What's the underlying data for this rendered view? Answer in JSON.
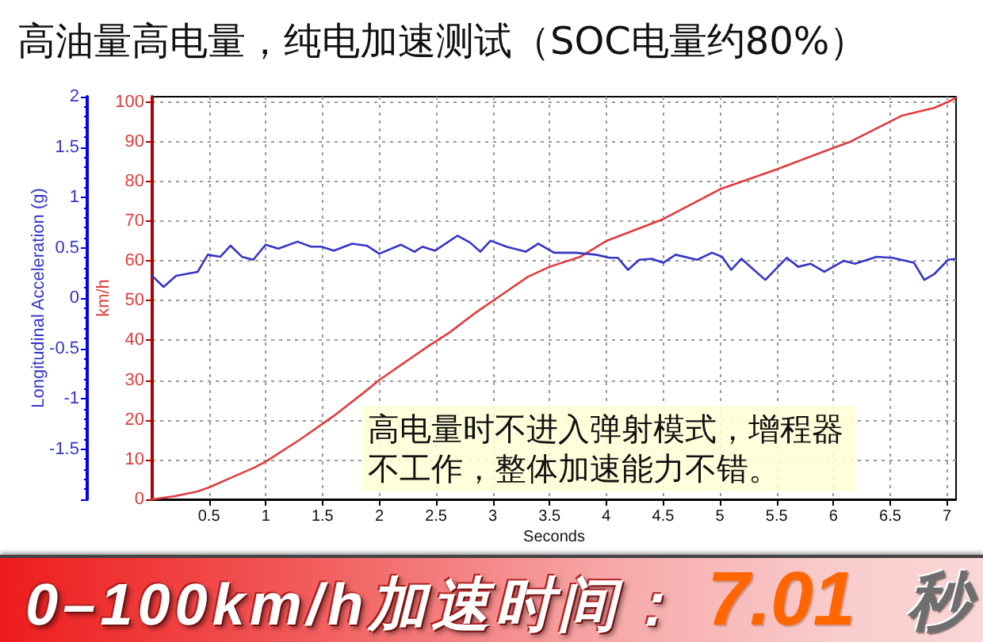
{
  "chart_data": {
    "type": "line",
    "title": "高油量高电量，纯电加速测试（SOC电量约80%）",
    "xlabel": "Seconds",
    "ylabel": "km/h",
    "y2label": "Longitudinal Acceleration (g)",
    "annotations": [
      "高电量时不进入弹射模式，增程器不工作，整体加速能力不错。",
      "0–100km/h加速时间：",
      "7.01",
      "秒"
    ],
    "series": [
      {
        "color": "#e03c3c",
        "x": [
          0,
          0.2,
          0.4,
          0.5,
          0.7,
          0.9,
          1.0,
          1.3,
          1.6,
          1.87,
          2.0,
          2.15,
          2.43,
          2.62,
          2.85,
          3.08,
          3.31,
          3.5,
          3.77,
          4.0,
          4.5,
          5.0,
          5.5,
          5.96,
          6.15,
          6.6,
          6.89,
          7.01,
          7.08
        ],
        "values": [
          0,
          0.8,
          2,
          3,
          5.5,
          8,
          9.5,
          15,
          21,
          27,
          30,
          33,
          38.5,
          42,
          47,
          51.5,
          56,
          58.5,
          61,
          65,
          70.5,
          78,
          83,
          88,
          90,
          96.5,
          98.5,
          100,
          101
        ]
      },
      {
        "color": "#3535c8",
        "axis": "y2",
        "x": [
          0,
          0.1,
          0.21,
          0.4,
          0.49,
          0.6,
          0.69,
          0.79,
          0.89,
          1.0,
          1.11,
          1.28,
          1.4,
          1.49,
          1.6,
          1.76,
          1.89,
          2.0,
          2.19,
          2.31,
          2.38,
          2.49,
          2.69,
          2.8,
          2.89,
          2.98,
          3.12,
          3.29,
          3.4,
          3.54,
          3.73,
          3.91,
          4.03,
          4.1,
          4.19,
          4.29,
          4.4,
          4.5,
          4.61,
          4.8,
          4.93,
          5.02,
          5.1,
          5.19,
          5.29,
          5.4,
          5.59,
          5.69,
          5.8,
          5.92,
          6.09,
          6.19,
          6.38,
          6.52,
          6.71,
          6.8,
          6.89,
          7.01,
          7.08
        ],
        "values": [
          0.22,
          0.11,
          0.22,
          0.26,
          0.43,
          0.41,
          0.52,
          0.41,
          0.38,
          0.53,
          0.49,
          0.56,
          0.51,
          0.51,
          0.47,
          0.54,
          0.52,
          0.44,
          0.53,
          0.46,
          0.51,
          0.47,
          0.62,
          0.55,
          0.46,
          0.57,
          0.51,
          0.46,
          0.54,
          0.45,
          0.45,
          0.43,
          0.4,
          0.4,
          0.28,
          0.38,
          0.39,
          0.35,
          0.43,
          0.38,
          0.45,
          0.41,
          0.28,
          0.39,
          0.29,
          0.18,
          0.4,
          0.31,
          0.34,
          0.26,
          0.37,
          0.34,
          0.41,
          0.4,
          0.35,
          0.18,
          0.24,
          0.38,
          0.39
        ]
      }
    ],
    "xlim": [
      0,
      7.08
    ],
    "xticks": [
      0.5,
      1,
      1.5,
      2,
      2.5,
      3,
      3.5,
      4,
      4.5,
      5,
      5.5,
      6,
      6.5,
      7
    ],
    "ylim": [
      0,
      101.3
    ],
    "yticks": [
      0,
      10,
      20,
      30,
      40,
      50,
      60,
      70,
      80,
      90,
      100
    ],
    "y2lim": [
      -2,
      2
    ],
    "y2ticks": [
      {
        "value": -2,
        "label": null
      },
      -1.5,
      -1,
      -0.5,
      0,
      0.5,
      1,
      1.5,
      2
    ],
    "grid": true,
    "marker": "none",
    "line_style": "solid"
  }
}
